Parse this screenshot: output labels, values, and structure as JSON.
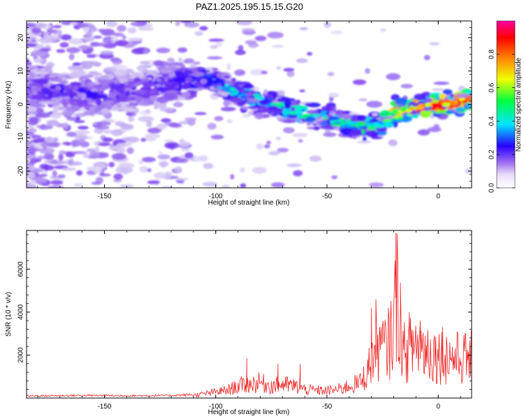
{
  "title": "PAZ1.2025.195.15.15.G20",
  "chart_data": [
    {
      "type": "heatmap",
      "xlabel": "Height of straight line (km)",
      "ylabel": "Frequency (Hz)",
      "xlim": [
        -185,
        15
      ],
      "ylim": [
        -25,
        25
      ],
      "xticks": [
        -150,
        -100,
        -50,
        0
      ],
      "yticks": [
        -20,
        -10,
        0,
        10,
        20
      ],
      "colorbar": {
        "label": "Normalized spectral amplitude",
        "range": [
          0,
          1
        ],
        "ticks": [
          "0.0",
          "0.2",
          "0.4",
          "0.6",
          "0.8"
        ],
        "tick_values": [
          0.0,
          0.2,
          0.4,
          0.6,
          0.8
        ],
        "colormap": [
          "#ffffff",
          "#c9b8f2",
          "#7a3ff0",
          "#2a00ff",
          "#00e5ff",
          "#00ff40",
          "#f0ff00",
          "#ff8000",
          "#ff0000",
          "#ff00a0"
        ]
      },
      "ridge": {
        "x": [
          -185,
          -175,
          -165,
          -155,
          -145,
          -135,
          -125,
          -115,
          -105,
          -95,
          -85,
          -75,
          -65,
          -55,
          -45,
          -35,
          -25,
          -20,
          -10,
          0,
          10,
          15
        ],
        "y": [
          5,
          4,
          4,
          3,
          4,
          5,
          6,
          7,
          8,
          5,
          2,
          0,
          -2,
          -3,
          -5,
          -7,
          -6,
          -2,
          -1,
          0,
          1,
          1.5
        ],
        "peak_amplitude": [
          0.1,
          0.12,
          0.12,
          0.13,
          0.1,
          0.1,
          0.12,
          0.15,
          0.2,
          0.3,
          0.35,
          0.4,
          0.4,
          0.35,
          0.4,
          0.5,
          0.5,
          0.6,
          0.8,
          0.9,
          0.85,
          0.8
        ]
      }
    },
    {
      "type": "line",
      "xlabel": "Height of straight line (km)",
      "ylabel": "SNR (10 * v/v)",
      "xlim": [
        -185,
        15
      ],
      "ylim": [
        0,
        7800
      ],
      "xticks": [
        -150,
        -100,
        -50,
        0
      ],
      "yticks": [
        2000,
        4000,
        6000
      ],
      "color": "#ee2222",
      "envelope": {
        "x": [
          -185,
          -160,
          -140,
          -120,
          -110,
          -105,
          -100,
          -95,
          -90,
          -85,
          -80,
          -75,
          -70,
          -65,
          -60,
          -55,
          -50,
          -45,
          -40,
          -35,
          -32,
          -30,
          -27,
          -25,
          -22,
          -20,
          -18,
          -16,
          -14,
          -12,
          -10,
          -8,
          -5,
          0,
          5,
          10,
          15
        ],
        "y": [
          100,
          120,
          110,
          120,
          160,
          250,
          350,
          450,
          700,
          800,
          900,
          700,
          800,
          700,
          500,
          450,
          420,
          500,
          700,
          900,
          1500,
          2200,
          3000,
          2800,
          3200,
          4500,
          6500,
          2600,
          2700,
          2900,
          3200,
          3000,
          2800,
          2500,
          2400,
          2300,
          2400
        ]
      },
      "spikes": [
        {
          "x": -86,
          "y": 1850
        },
        {
          "x": -72,
          "y": 1600
        },
        {
          "x": -62,
          "y": 1600
        },
        {
          "x": -30,
          "y": 4200
        },
        {
          "x": -28,
          "y": 4600
        },
        {
          "x": -25,
          "y": 3400
        },
        {
          "x": -19,
          "y": 7700
        },
        {
          "x": -17,
          "y": 4200
        },
        {
          "x": -13,
          "y": 4000
        },
        {
          "x": -8,
          "y": 3600
        },
        {
          "x": 2,
          "y": 3300
        },
        {
          "x": 15,
          "y": 3000
        }
      ]
    }
  ]
}
